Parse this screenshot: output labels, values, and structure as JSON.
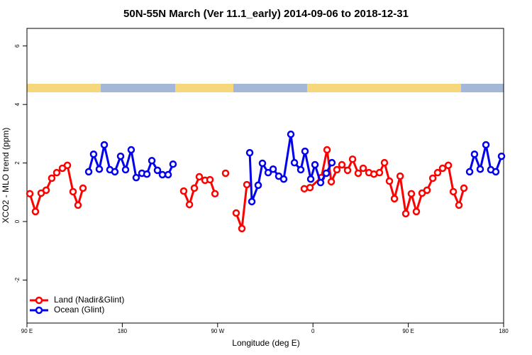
{
  "chart_data": {
    "type": "line",
    "title": "50N-55N March (Ver 11.1_early)   2014-09-06 to 2018-12-31",
    "x_label": "Longitude (deg E)",
    "y_label": "XCO2 - MLO trend (ppm)",
    "xlim": [
      90,
      540
    ],
    "ylim": [
      -3.47,
      6.6
    ],
    "xticks": [
      {
        "value": 90,
        "label": "90 E"
      },
      {
        "value": 180,
        "label": "180"
      },
      {
        "value": 270,
        "label": "90 W"
      },
      {
        "value": 360,
        "label": "0"
      },
      {
        "value": 450,
        "label": "90 E"
      },
      {
        "value": 540,
        "label": "180"
      }
    ],
    "yticks": [
      -2,
      0,
      2,
      4,
      6
    ],
    "grid": false,
    "legend": "bottomleft",
    "series": [
      {
        "name": "Land (Nadir&Glint)",
        "color": "#ff0000",
        "x": [
          92.7,
          98.0,
          103.4,
          108.1,
          113.4,
          118.1,
          123.5,
          128.2,
          133.5,
          138.2,
          142.9,
          null,
          238.0,
          243.4,
          248.0,
          252.7,
          258.1,
          262.8,
          267.5,
          null,
          277.5,
          null,
          287.5,
          292.9,
          297.6,
          null,
          351.8,
          357.2,
          367.9,
          373.3,
          377.3,
          382.6,
          387.3,
          392.7,
          397.4,
          402.7,
          407.4,
          412.8,
          417.5,
          422.8,
          427.5,
          432.2,
          436.9,
          442.3,
          447.6,
          452.9,
          457.6,
          463.0,
          467.7,
          473.1,
          477.7,
          482.4,
          487.8,
          492.5,
          497.8,
          502.5
        ],
        "values": [
          0.95,
          0.34,
          0.97,
          1.07,
          1.48,
          1.67,
          1.82,
          1.92,
          1.02,
          0.56,
          1.14,
          null,
          1.04,
          0.58,
          1.14,
          1.53,
          1.41,
          1.43,
          0.95,
          null,
          1.65,
          null,
          0.29,
          -0.24,
          1.26,
          null,
          1.12,
          1.16,
          1.5,
          2.45,
          1.36,
          1.77,
          1.94,
          1.75,
          2.13,
          1.65,
          1.82,
          1.67,
          1.62,
          1.67,
          2.01,
          1.38,
          0.78,
          1.55,
          0.27,
          0.95,
          0.34,
          0.97,
          1.07,
          1.48,
          1.67,
          1.82,
          1.92,
          1.02,
          0.56,
          1.14
        ]
      },
      {
        "name": "Ocean (Glint)",
        "color": "#0000ee",
        "x": [
          148.3,
          152.9,
          158.3,
          163.0,
          168.3,
          173.0,
          178.4,
          183.1,
          188.4,
          193.1,
          198.5,
          203.2,
          207.9,
          213.2,
          217.9,
          223.3,
          227.9,
          null,
          300.3,
          302.3,
          308.3,
          312.3,
          317.7,
          322.4,
          327.7,
          332.4,
          339.1,
          342.5,
          348.5,
          352.5,
          357.9,
          361.9,
          367.2,
          372.6,
          377.9,
          null,
          507.9,
          512.5,
          517.9,
          523.3,
          527.9,
          532.6,
          538.0
        ],
        "values": [
          1.7,
          2.3,
          1.79,
          2.62,
          1.77,
          1.7,
          2.23,
          1.77,
          2.45,
          1.5,
          1.65,
          1.62,
          2.08,
          1.75,
          1.6,
          1.6,
          1.96,
          null,
          2.35,
          0.68,
          1.24,
          1.99,
          1.67,
          1.79,
          1.55,
          1.45,
          2.98,
          2.01,
          1.77,
          2.4,
          1.45,
          1.94,
          1.33,
          1.65,
          2.01,
          null,
          1.7,
          2.3,
          1.79,
          2.62,
          1.77,
          1.7,
          2.23
        ]
      }
    ]
  }
}
